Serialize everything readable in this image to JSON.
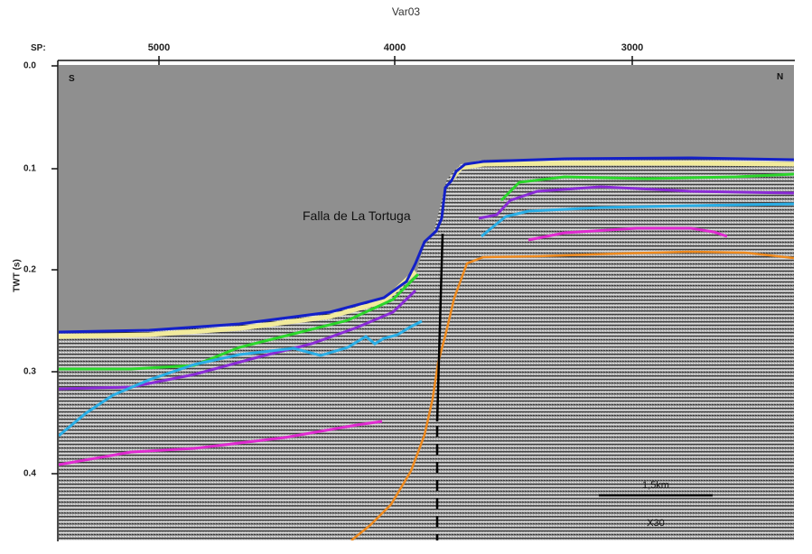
{
  "title": "Var03",
  "sp_axis": {
    "label": "SP:",
    "ticks": [
      "5000",
      "4000",
      "3000"
    ]
  },
  "y_axis": {
    "title": "TWT (s)",
    "ticks": [
      "0.0",
      "0.1",
      "0.2",
      "0.3",
      "0.4"
    ]
  },
  "directions": {
    "left": "S",
    "right": "N"
  },
  "fault_label": "Falla de La Tortuga",
  "scale_bar": {
    "length": "1,5km",
    "exaggeration": "X30"
  },
  "colors": {
    "background": "#8f8f8f",
    "seafloor": "#1320c8",
    "yellow_horizon": "#f2eb9c",
    "green_horizon": "#2bd62b",
    "purple_horizon": "#8a2bd6",
    "cyan_horizon": "#2aaee6",
    "magenta_horizon": "#e02ad0",
    "orange_horizon": "#ef8a1e",
    "fault": "#000000"
  }
}
